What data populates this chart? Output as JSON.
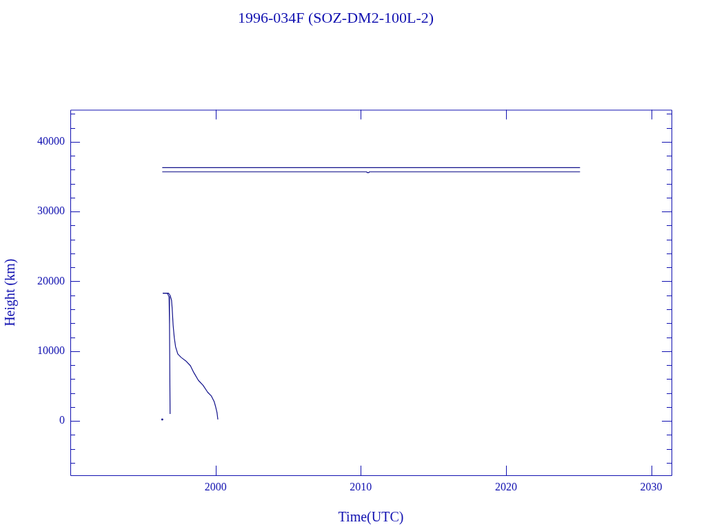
{
  "chart_data": {
    "type": "line",
    "title": "1996-034F (SOZ-DM2-100L-2)",
    "xlabel": "Time(UTC)",
    "ylabel": "Height (km)",
    "xlim": [
      1990,
      2031.4
    ],
    "xticks": [
      2000,
      2010,
      2020,
      2030
    ],
    "ylim": [
      -7800,
      44600
    ],
    "yticks": [
      {
        "value": -6000,
        "label": null
      },
      {
        "value": -4000,
        "label": null
      },
      {
        "value": -2000,
        "label": null
      },
      0,
      {
        "value": 2000,
        "label": null
      },
      {
        "value": 4000,
        "label": null
      },
      {
        "value": 6000,
        "label": null
      },
      {
        "value": 8000,
        "label": null
      },
      10000,
      {
        "value": 12000,
        "label": null
      },
      {
        "value": 14000,
        "label": null
      },
      {
        "value": 16000,
        "label": null
      },
      {
        "value": 18000,
        "label": null
      },
      20000,
      {
        "value": 22000,
        "label": null
      },
      {
        "value": 24000,
        "label": null
      },
      {
        "value": 26000,
        "label": null
      },
      {
        "value": 28000,
        "label": null
      },
      30000,
      {
        "value": 32000,
        "label": null
      },
      {
        "value": 34000,
        "label": null
      },
      {
        "value": 36000,
        "label": null
      },
      {
        "value": 38000,
        "label": null
      },
      40000,
      {
        "value": 42000,
        "label": null
      },
      {
        "value": 44000,
        "label": null
      }
    ],
    "marker": "none",
    "line_style": "solid",
    "series": [
      {
        "color": "#10108a",
        "x": [
          1996.33,
          2025.1
        ],
        "values": [
          36300,
          36300
        ]
      },
      {
        "color": "#10108a",
        "x": [
          1996.33,
          2010.4,
          2010.45,
          2010.55,
          2010.6,
          2025.1
        ],
        "values": [
          35700,
          35700,
          35600,
          35600,
          35700,
          35700
        ]
      },
      {
        "color": "#10108a",
        "x": [
          1996.37,
          1996.76,
          1996.87,
          1996.97,
          1997.01,
          1997.08,
          1997.16,
          1997.25,
          1997.4,
          1997.63,
          1997.95,
          1998.27,
          1998.51,
          1998.82,
          1999.14,
          1999.46,
          1999.7,
          1999.9,
          2000.01,
          2000.1,
          2000.16
        ],
        "values": [
          18300,
          18300,
          18000,
          17300,
          16200,
          13700,
          11900,
          10600,
          9600,
          9100,
          8600,
          7900,
          6900,
          5800,
          5100,
          4100,
          3600,
          2800,
          2000,
          1200,
          200
        ]
      },
      {
        "color": "#10108a",
        "x": [
          1996.37,
          1996.68,
          1996.8,
          1996.83,
          1996.87
        ],
        "values": [
          18300,
          18300,
          17800,
          13900,
          1000
        ]
      },
      {
        "type": "scatter",
        "marker": "square",
        "color": "#10108a",
        "x": [
          1996.33
        ],
        "values": [
          200
        ]
      }
    ]
  }
}
